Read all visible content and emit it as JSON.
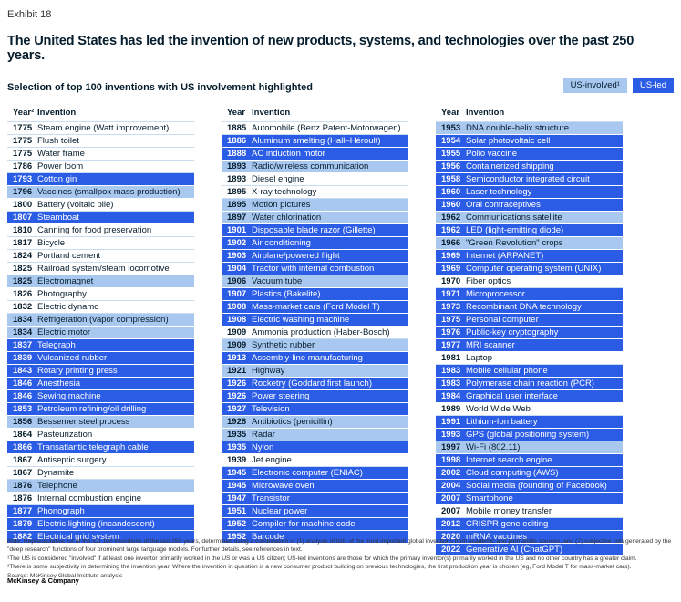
{
  "exhibit_label": "Exhibit 18",
  "title": "The United States has led the invention of new products, systems, and technologies over the past 250 years.",
  "subtitle": "Selection of top 100 inventions with US involvement highlighted",
  "legend": {
    "involved_label": "US-involved¹",
    "led_label": "US-led",
    "involved_color": "#a8c8f0",
    "led_color": "#2b5ce5",
    "hairline_color": "#c9ddf2"
  },
  "table": {
    "columns": [
      {
        "year_header": "Year²",
        "invention_header": "Invention",
        "rows": [
          {
            "year": "1775",
            "invention": "Steam engine (Watt improvement)",
            "status": "none"
          },
          {
            "year": "1775",
            "invention": "Flush toilet",
            "status": "none"
          },
          {
            "year": "1775",
            "invention": "Water frame",
            "status": "none"
          },
          {
            "year": "1786",
            "invention": "Power loom",
            "status": "none"
          },
          {
            "year": "1793",
            "invention": "Cotton gin",
            "status": "led"
          },
          {
            "year": "1796",
            "invention": "Vaccines (smallpox mass production)",
            "status": "involved"
          },
          {
            "year": "1800",
            "invention": "Battery (voltaic pile)",
            "status": "none"
          },
          {
            "year": "1807",
            "invention": "Steamboat",
            "status": "led"
          },
          {
            "year": "1810",
            "invention": "Canning for food preservation",
            "status": "none"
          },
          {
            "year": "1817",
            "invention": "Bicycle",
            "status": "none"
          },
          {
            "year": "1824",
            "invention": "Portland cement",
            "status": "none"
          },
          {
            "year": "1825",
            "invention": "Railroad system/steam locomotive",
            "status": "none"
          },
          {
            "year": "1825",
            "invention": "Electromagnet",
            "status": "involved"
          },
          {
            "year": "1826",
            "invention": "Photography",
            "status": "none"
          },
          {
            "year": "1832",
            "invention": "Electric dynamo",
            "status": "none"
          },
          {
            "year": "1834",
            "invention": "Refrigeration (vapor compression)",
            "status": "involved"
          },
          {
            "year": "1834",
            "invention": "Electric motor",
            "status": "involved"
          },
          {
            "year": "1837",
            "invention": "Telegraph",
            "status": "led"
          },
          {
            "year": "1839",
            "invention": "Vulcanized rubber",
            "status": "led"
          },
          {
            "year": "1843",
            "invention": "Rotary printing press",
            "status": "led"
          },
          {
            "year": "1846",
            "invention": "Anesthesia",
            "status": "led"
          },
          {
            "year": "1846",
            "invention": "Sewing machine",
            "status": "led"
          },
          {
            "year": "1853",
            "invention": "Petroleum refining/oil drilling",
            "status": "led"
          },
          {
            "year": "1856",
            "invention": "Bessemer steel process",
            "status": "involved"
          },
          {
            "year": "1864",
            "invention": "Pasteurization",
            "status": "none"
          },
          {
            "year": "1866",
            "invention": "Transatlantic telegraph cable",
            "status": "led"
          },
          {
            "year": "1867",
            "invention": "Antiseptic surgery",
            "status": "none"
          },
          {
            "year": "1867",
            "invention": "Dynamite",
            "status": "none"
          },
          {
            "year": "1876",
            "invention": "Telephone",
            "status": "involved"
          },
          {
            "year": "1876",
            "invention": "Internal combustion engine",
            "status": "none"
          },
          {
            "year": "1877",
            "invention": "Phonograph",
            "status": "led"
          },
          {
            "year": "1879",
            "invention": "Electric lighting (incandescent)",
            "status": "led"
          },
          {
            "year": "1882",
            "invention": "Electrical grid system",
            "status": "led"
          }
        ]
      },
      {
        "year_header": "Year",
        "invention_header": "Invention",
        "rows": [
          {
            "year": "1885",
            "invention": "Automobile (Benz Patent-Motorwagen)",
            "status": "none"
          },
          {
            "year": "1886",
            "invention": "Aluminum smelting (Hall–Héroult)",
            "status": "led"
          },
          {
            "year": "1888",
            "invention": "AC induction motor",
            "status": "led"
          },
          {
            "year": "1893",
            "invention": "Radio/wireless communication",
            "status": "involved"
          },
          {
            "year": "1893",
            "invention": "Diesel engine",
            "status": "none"
          },
          {
            "year": "1895",
            "invention": "X-ray technology",
            "status": "none"
          },
          {
            "year": "1895",
            "invention": "Motion pictures",
            "status": "involved"
          },
          {
            "year": "1897",
            "invention": "Water chlorination",
            "status": "involved"
          },
          {
            "year": "1901",
            "invention": "Disposable blade razor (Gillette)",
            "status": "led"
          },
          {
            "year": "1902",
            "invention": "Air conditioning",
            "status": "led"
          },
          {
            "year": "1903",
            "invention": "Airplane/powered flight",
            "status": "led"
          },
          {
            "year": "1904",
            "invention": "Tractor with internal combustion",
            "status": "led"
          },
          {
            "year": "1906",
            "invention": "Vacuum tube",
            "status": "involved"
          },
          {
            "year": "1907",
            "invention": "Plastics (Bakelite)",
            "status": "led"
          },
          {
            "year": "1908",
            "invention": "Mass-market cars (Ford Model T)",
            "status": "led"
          },
          {
            "year": "1908",
            "invention": "Electric washing machine",
            "status": "led"
          },
          {
            "year": "1909",
            "invention": "Ammonia production (Haber-Bosch)",
            "status": "none"
          },
          {
            "year": "1909",
            "invention": "Synthetic rubber",
            "status": "involved"
          },
          {
            "year": "1913",
            "invention": "Assembly-line manufacturing",
            "status": "led"
          },
          {
            "year": "1921",
            "invention": "Highway",
            "status": "involved"
          },
          {
            "year": "1926",
            "invention": "Rocketry (Goddard first launch)",
            "status": "led"
          },
          {
            "year": "1926",
            "invention": "Power steering",
            "status": "led"
          },
          {
            "year": "1927",
            "invention": "Television",
            "status": "led"
          },
          {
            "year": "1928",
            "invention": "Antibiotics (penicillin)",
            "status": "involved"
          },
          {
            "year": "1935",
            "invention": "Radar",
            "status": "involved"
          },
          {
            "year": "1935",
            "invention": "Nylon",
            "status": "led"
          },
          {
            "year": "1939",
            "invention": "Jet engine",
            "status": "none"
          },
          {
            "year": "1945",
            "invention": "Electronic computer (ENIAC)",
            "status": "led"
          },
          {
            "year": "1945",
            "invention": "Microwave oven",
            "status": "led"
          },
          {
            "year": "1947",
            "invention": "Transistor",
            "status": "led"
          },
          {
            "year": "1951",
            "invention": "Nuclear power",
            "status": "led"
          },
          {
            "year": "1952",
            "invention": "Compiler for machine code",
            "status": "led"
          },
          {
            "year": "1952",
            "invention": "Barcode",
            "status": "led"
          }
        ]
      },
      {
        "year_header": "Year",
        "invention_header": "Invention",
        "rows": [
          {
            "year": "1953",
            "invention": "DNA double-helix structure",
            "status": "involved"
          },
          {
            "year": "1954",
            "invention": "Solar photovoltaic cell",
            "status": "led"
          },
          {
            "year": "1955",
            "invention": "Polio vaccine",
            "status": "led"
          },
          {
            "year": "1956",
            "invention": "Containerized shipping",
            "status": "led"
          },
          {
            "year": "1958",
            "invention": "Semiconductor integrated circuit",
            "status": "led"
          },
          {
            "year": "1960",
            "invention": "Laser technology",
            "status": "led"
          },
          {
            "year": "1960",
            "invention": "Oral contraceptives",
            "status": "led"
          },
          {
            "year": "1962",
            "invention": "Communications satellite",
            "status": "involved"
          },
          {
            "year": "1962",
            "invention": "LED (light-emitting diode)",
            "status": "led"
          },
          {
            "year": "1966",
            "invention": "\"Green Revolution\" crops",
            "status": "involved"
          },
          {
            "year": "1969",
            "invention": "Internet (ARPANET)",
            "status": "led"
          },
          {
            "year": "1969",
            "invention": "Computer operating system (UNIX)",
            "status": "led"
          },
          {
            "year": "1970",
            "invention": "Fiber optics",
            "status": "none"
          },
          {
            "year": "1971",
            "invention": "Microprocessor",
            "status": "led"
          },
          {
            "year": "1973",
            "invention": "Recombinant DNA technology",
            "status": "led"
          },
          {
            "year": "1975",
            "invention": "Personal computer",
            "status": "led"
          },
          {
            "year": "1976",
            "invention": "Public-key cryptography",
            "status": "led"
          },
          {
            "year": "1977",
            "invention": "MRI scanner",
            "status": "led"
          },
          {
            "year": "1981",
            "invention": "Laptop",
            "status": "none"
          },
          {
            "year": "1983",
            "invention": "Mobile cellular phone",
            "status": "led"
          },
          {
            "year": "1983",
            "invention": "Polymerase chain reaction (PCR)",
            "status": "led"
          },
          {
            "year": "1984",
            "invention": "Graphical user interface",
            "status": "led"
          },
          {
            "year": "1989",
            "invention": "World Wide Web",
            "status": "none"
          },
          {
            "year": "1991",
            "invention": "Lithium-Ion battery",
            "status": "led"
          },
          {
            "year": "1993",
            "invention": "GPS (global positioning system)",
            "status": "led"
          },
          {
            "year": "1997",
            "invention": "Wi-Fi (802.11)",
            "status": "involved"
          },
          {
            "year": "1998",
            "invention": "Internet search engine",
            "status": "led"
          },
          {
            "year": "2002",
            "invention": "Cloud computing (AWS)",
            "status": "led"
          },
          {
            "year": "2004",
            "invention": "Social media (founding of Facebook)",
            "status": "led"
          },
          {
            "year": "2007",
            "invention": "Smartphone",
            "status": "led"
          },
          {
            "year": "2007",
            "invention": "Mobile money transfer",
            "status": "none"
          },
          {
            "year": "2012",
            "invention": "CRISPR gene editing",
            "status": "led"
          },
          {
            "year": "2020",
            "invention": "mRNA vaccines",
            "status": "led"
          },
          {
            "year": "2022",
            "invention": "Generative AI (ChatGPT)",
            "status": "led"
          }
        ]
      }
    ]
  },
  "footer": {
    "note": "Note: Representative list of the top 100 inventions of the last 250 years, determined using a combination of (1) analysis of lists of the most important global inventions from academic and journalistic sources, and (2) subjective lists generated by the \"deep research\" functions of four prominent large language models. For further details, see references in text.",
    "footnote1": "¹The US is considered \"involved\" if at least one inventor primarily worked in the US or was a US citizen; US-led inventions are those for which the primary inventor(s) primarily worked in the US and no other country has a greater claim.",
    "footnote2": "²There is some subjectivity in determining the invention year. Where the invention in question is a new consumer product building on previous technologies, the first production year is chosen (eg, Ford Model T for mass-market cars).",
    "source": "Source: McKinsey Global Institute analysis",
    "brand": "McKinsey & Company"
  }
}
